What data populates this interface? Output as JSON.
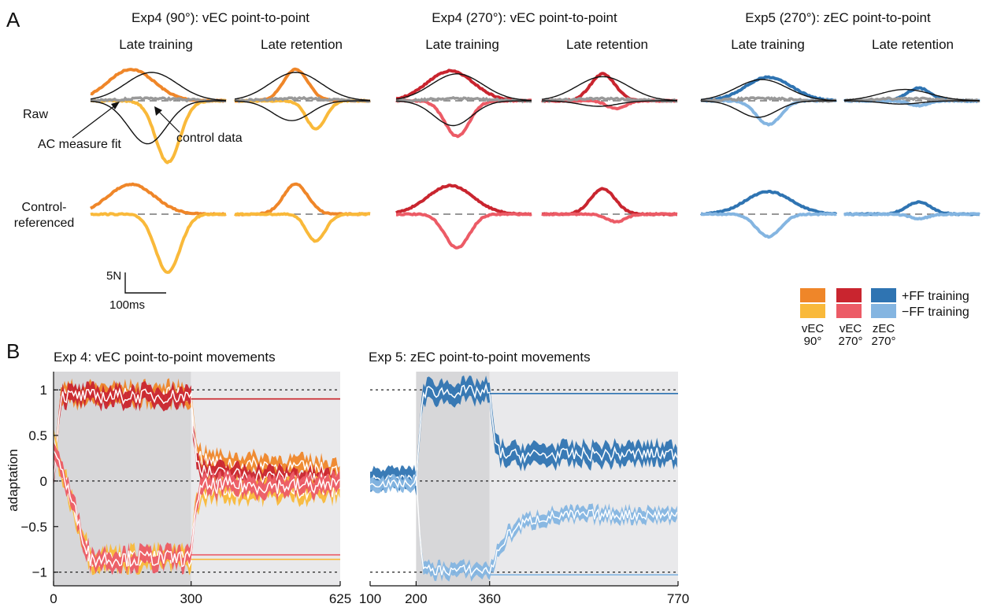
{
  "panel_labels": {
    "a": "A",
    "b": "B"
  },
  "colors": {
    "vec90_pos": "#ef8629",
    "vec90_neg": "#f9b93a",
    "vec270_pos": "#c9252f",
    "vec270_neg": "#ec5b66",
    "zec270_pos": "#2f74b2",
    "zec270_neg": "#84b5e1",
    "control": "#999999",
    "fit": "#111111",
    "train_shade": "#d7d7d9",
    "retention_shade": "#e9e9eb"
  },
  "panelA": {
    "experiments": [
      {
        "title": "Exp4 (90°): vEC point-to-point",
        "key": "vec90"
      },
      {
        "title": "Exp4 (270°): vEC point-to-point",
        "key": "vec270"
      },
      {
        "title": "Exp5 (270°): zEC point-to-point",
        "key": "zec270"
      }
    ],
    "subtitles": {
      "training": "Late training",
      "retention": "Late retention"
    },
    "row_labels": {
      "raw": "Raw",
      "ctrl_line1": "Control-",
      "ctrl_line2": "referenced"
    },
    "annotations": {
      "fit": "AC measure fit",
      "control": "control data"
    },
    "scalebar": {
      "force": "5N",
      "time": "100ms"
    }
  },
  "legend": {
    "pos_label": "+FF training",
    "neg_label": "−FF training",
    "columns": [
      {
        "line1": "vEC",
        "line2": "90°",
        "key": "vec90"
      },
      {
        "line1": "vEC",
        "line2": "270°",
        "key": "vec270"
      },
      {
        "line1": "zEC",
        "line2": "270°",
        "key": "zec270"
      }
    ]
  },
  "chart_data": [
    {
      "type": "line",
      "title": "Exp 4: vEC point-to-point movements",
      "ylabel": "adaptation",
      "xlim": [
        0,
        625
      ],
      "ylim": [
        -1.15,
        1.2
      ],
      "xticks": [
        0,
        300,
        625
      ],
      "yticks": [
        1,
        0.5,
        0,
        -0.5,
        -1
      ],
      "ytick_labels": [
        "1",
        "0.5",
        "0",
        "−0.5",
        "−1"
      ],
      "dashed_reference_y": [
        1,
        0,
        -1
      ],
      "training_block": [
        0,
        300
      ],
      "retention_block": [
        300,
        625
      ],
      "series": [
        {
          "key": "vec90_pos",
          "sign": 1,
          "train_level": 0.95,
          "ret_level": 0.22,
          "ret_end": 0.12,
          "noise": 0.08,
          "band": 0.1,
          "asymptote": 0.9
        },
        {
          "key": "vec270_pos",
          "sign": 1,
          "train_level": 0.93,
          "ret_level": 0.1,
          "ret_end": 0.0,
          "noise": 0.08,
          "band": 0.09,
          "asymptote": 0.9
        },
        {
          "key": "vec90_neg",
          "sign": -1,
          "train_level": -0.85,
          "ret_level": -0.1,
          "ret_end": -0.1,
          "noise": 0.09,
          "band": 0.1,
          "asymptote": -0.86
        },
        {
          "key": "vec270_neg",
          "sign": -1,
          "train_level": -0.85,
          "ret_level": -0.05,
          "ret_end": -0.05,
          "noise": 0.09,
          "band": 0.09,
          "asymptote": -0.81
        }
      ]
    },
    {
      "type": "line",
      "title": "Exp 5: zEC point-to-point movements",
      "ylabel": "",
      "xlim": [
        100,
        770
      ],
      "ylim": [
        -1.15,
        1.2
      ],
      "xticks": [
        100,
        200,
        360,
        770
      ],
      "baseline_block": [
        100,
        200
      ],
      "training_block": [
        200,
        360
      ],
      "retention_block": [
        360,
        770
      ],
      "dashed_reference_y": [
        1,
        0,
        -1
      ],
      "series": [
        {
          "key": "zec270_pos",
          "sign": 1,
          "train_level": 0.98,
          "ret_level": 0.28,
          "ret_end": 0.3,
          "noise": 0.07,
          "band": 0.11,
          "asymptote": 0.96
        },
        {
          "key": "zec270_neg",
          "sign": -1,
          "train_level": -0.98,
          "ret_level": -0.55,
          "ret_end": -0.37,
          "noise": 0.06,
          "band": 0.07,
          "asymptote": -1.03
        }
      ]
    }
  ]
}
